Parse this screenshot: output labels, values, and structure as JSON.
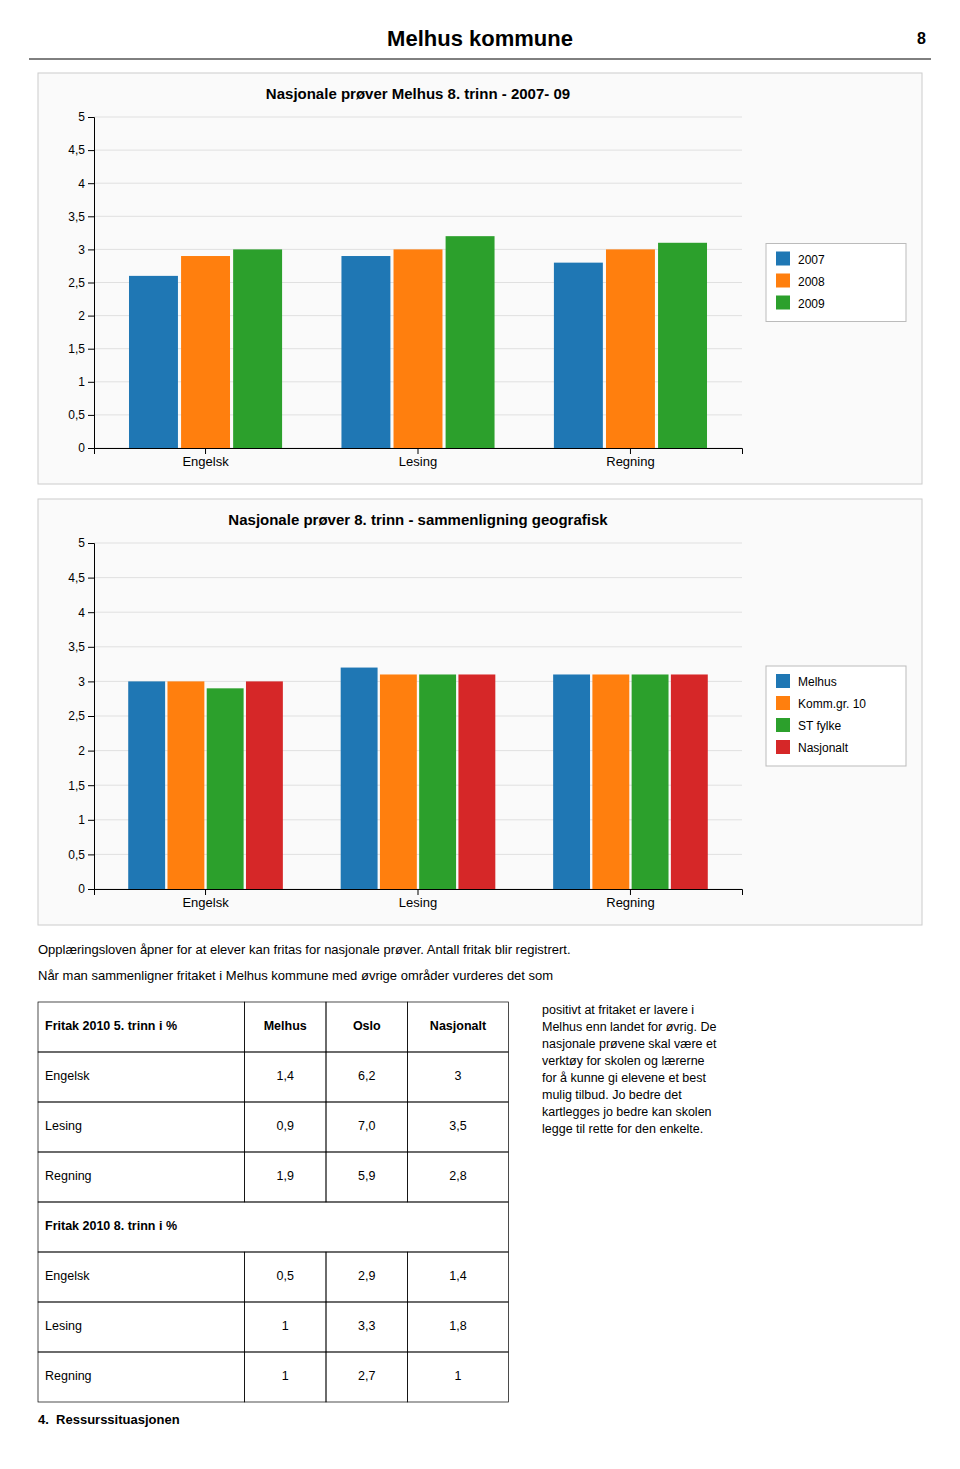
{
  "chart_data": [
    {
      "type": "bar",
      "title": "Nasjonale prøver Melhus 8. trinn - 2007- 09",
      "categories": [
        "Engelsk",
        "Lesing",
        "Regning"
      ],
      "series": [
        {
          "name": "2007",
          "values": [
            2.6,
            2.9,
            2.8
          ]
        },
        {
          "name": "2008",
          "values": [
            2.9,
            3.0,
            3.0
          ]
        },
        {
          "name": "2009",
          "values": [
            3.0,
            3.2,
            3.1
          ]
        }
      ],
      "ylim": [
        0,
        5
      ],
      "yticks": [
        0,
        {
          "value": 0.5,
          "label": "0,5"
        },
        1,
        {
          "value": 1.5,
          "label": "1,5"
        },
        2,
        {
          "value": 2.5,
          "label": "2,5"
        },
        3,
        {
          "value": 3.5,
          "label": "3,5"
        },
        4,
        {
          "value": 4.5,
          "label": "4,5"
        },
        5
      ],
      "grid": true,
      "legend": "right"
    },
    {
      "type": "bar",
      "title": "Nasjonale prøver 8. trinn - sammenligning geografisk",
      "categories": [
        "Engelsk",
        "Lesing",
        "Regning"
      ],
      "series": [
        {
          "name": "Melhus",
          "values": [
            3.0,
            3.2,
            3.1
          ]
        },
        {
          "name": "Komm.gr. 10",
          "values": [
            3.0,
            3.1,
            3.1
          ]
        },
        {
          "name": "ST fylke",
          "values": [
            2.9,
            3.1,
            3.1
          ]
        },
        {
          "name": "Nasjonalt",
          "values": [
            3.0,
            3.1,
            3.1
          ]
        }
      ],
      "ylim": [
        0,
        5
      ],
      "yticks": [
        0,
        {
          "value": 0.5,
          "label": "0,5"
        },
        1,
        {
          "value": 1.5,
          "label": "1,5"
        },
        2,
        {
          "value": 2.5,
          "label": "2,5"
        },
        3,
        {
          "value": 3.5,
          "label": "3,5"
        },
        4,
        {
          "value": 4.5,
          "label": "4,5"
        },
        5
      ],
      "grid": true,
      "legend": "right"
    }
  ],
  "page": {
    "title": "Melhus kommune",
    "page_number": "8",
    "paragraphs": [
      "Opplæringsloven åpner for at elever kan fritas for nasjonale prøver. Antall fritak blir registrert.",
      "Når man sammenligner fritaket i Melhus kommune med øvrige områder vurderes det som"
    ],
    "table1": {
      "header": [
        "Fritak 2010 5. trinn i %",
        "Melhus",
        "Oslo",
        "Nasjonalt"
      ],
      "rows": [
        [
          "Engelsk",
          "1,4",
          "6,2",
          "3"
        ],
        [
          "Lesing",
          "0,9",
          "7,0",
          "3,5"
        ],
        [
          "Regning",
          "1,9",
          "5,9",
          "2,8"
        ]
      ]
    },
    "table2": {
      "header": "Fritak 2010 8. trinn i %",
      "rows": [
        [
          "Engelsk",
          "0,5",
          "2,9",
          "1,4"
        ],
        [
          "Lesing",
          "1",
          "3,3",
          "1,8"
        ],
        [
          "Regning",
          "1",
          "2,7",
          "1"
        ]
      ]
    },
    "section_heading": "4.  Ressurssituasjonen",
    "text_right": "positivt at fritaket er lavere i\nMelhus enn landet for øvrig. De\nnasjonale prøvene skal være et\nverktøy for skolen og lærerne\nfor å kunne gi elevene et best\nmulig tilbud. Jo bedre det\nkartlegges jo bedre kan skolen\nlegge til rette for den enkelte."
  }
}
